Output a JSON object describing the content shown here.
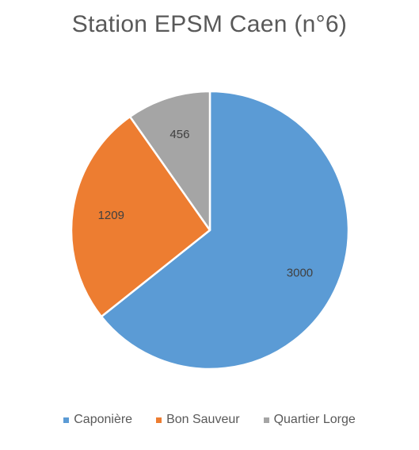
{
  "chart_data": {
    "type": "pie",
    "title": "Station EPSM Caen (n°6)",
    "categories": [
      "Caponière",
      "Bon Sauveur",
      "Quartier Lorge"
    ],
    "values": [
      3000,
      1209,
      456
    ],
    "colors": [
      "#5B9BD5",
      "#ED7D31",
      "#A5A5A5"
    ],
    "start_angle_deg": 0,
    "direction": "clockwise",
    "data_labels": true,
    "legend_placement": "bottom"
  }
}
